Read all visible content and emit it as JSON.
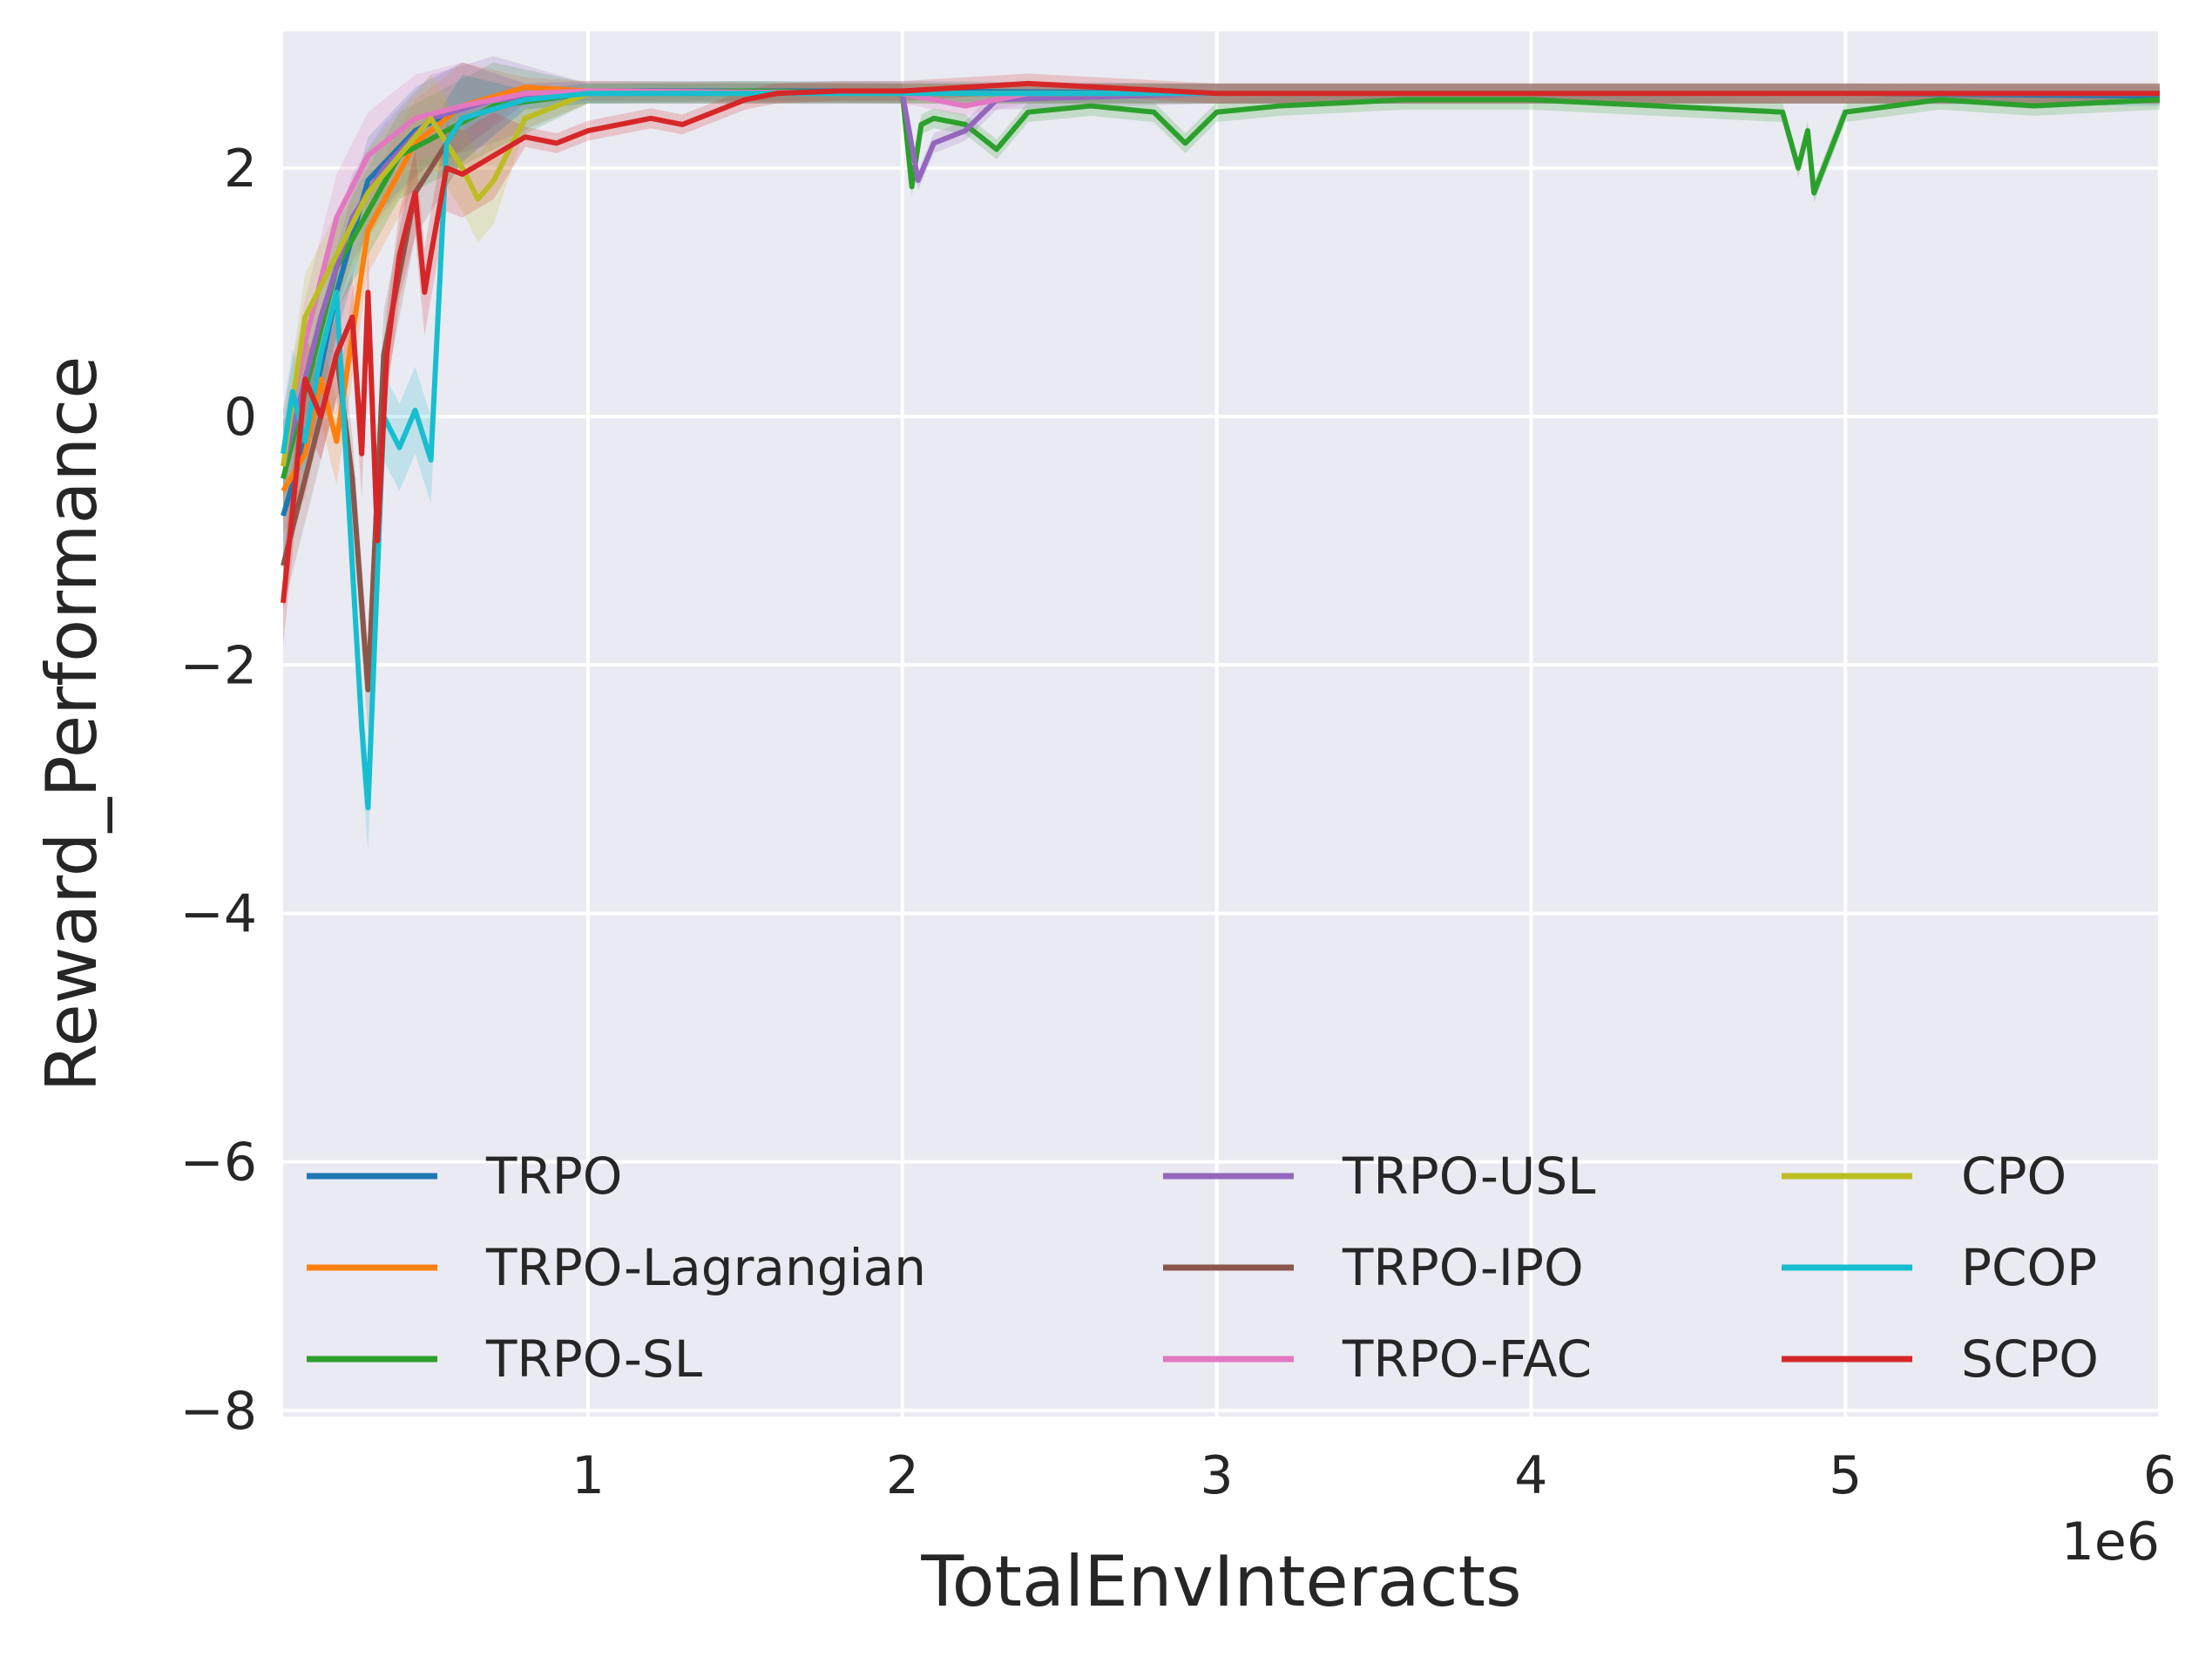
{
  "chart_data": {
    "type": "line",
    "xlabel": "TotalEnvInteracts",
    "ylabel": "Reward_Performance",
    "x_offset_label": "1e6",
    "xlim": [
      0.03,
      6.0
    ],
    "ylim": [
      -8.05,
      3.1
    ],
    "x_ticks": [
      1,
      2,
      3,
      4,
      5,
      6
    ],
    "x_tick_labels": [
      "1",
      "2",
      "3",
      "4",
      "5",
      "6"
    ],
    "y_ticks": [
      2,
      0,
      -2,
      -4,
      -6,
      -8
    ],
    "y_tick_labels": [
      "2",
      "0",
      "−2",
      "−4",
      "−6",
      "−8"
    ],
    "grid": true,
    "background": "#eaeaf2",
    "legend_position": "lower center",
    "series": [
      {
        "name": "TRPO",
        "color": "#1f77b4",
        "x": [
          0.03,
          0.1,
          0.2,
          0.3,
          0.45,
          0.6,
          0.8,
          1.0,
          2.0,
          3.0,
          4.0,
          5.0,
          6.0
        ],
        "y": [
          -0.8,
          -0.2,
          1.0,
          1.9,
          2.3,
          2.5,
          2.6,
          2.62,
          2.62,
          2.6,
          2.6,
          2.6,
          2.58
        ]
      },
      {
        "name": "TRPO-Lagrangian",
        "color": "#ff7f0e",
        "x": [
          0.03,
          0.1,
          0.15,
          0.2,
          0.3,
          0.45,
          0.6,
          0.8,
          1.0,
          2.0,
          3.0,
          4.0,
          5.0,
          6.0
        ],
        "y": [
          -0.6,
          -0.3,
          0.3,
          -0.2,
          1.5,
          2.2,
          2.5,
          2.65,
          2.62,
          2.6,
          2.6,
          2.6,
          2.6,
          2.6
        ]
      },
      {
        "name": "TRPO-SL",
        "color": "#2ca02c",
        "x": [
          0.03,
          0.2,
          0.4,
          0.7,
          1.0,
          1.5,
          2.0,
          2.03,
          2.06,
          2.1,
          2.2,
          2.3,
          2.4,
          2.6,
          2.8,
          2.9,
          3.0,
          3.2,
          3.6,
          4.0,
          4.4,
          4.8,
          4.85,
          4.88,
          4.9,
          5.0,
          5.3,
          5.6,
          6.0
        ],
        "y": [
          -0.5,
          1.2,
          2.1,
          2.5,
          2.6,
          2.62,
          2.6,
          1.85,
          2.35,
          2.4,
          2.35,
          2.15,
          2.45,
          2.5,
          2.45,
          2.2,
          2.45,
          2.5,
          2.55,
          2.55,
          2.5,
          2.45,
          2.0,
          2.3,
          1.8,
          2.45,
          2.55,
          2.5,
          2.55
        ]
      },
      {
        "name": "TRPO-USL",
        "color": "#9467bd",
        "x": [
          0.03,
          0.15,
          0.25,
          0.35,
          0.5,
          0.7,
          1.0,
          2.0,
          2.05,
          2.1,
          2.2,
          2.3,
          3.0,
          4.0,
          5.0,
          6.0
        ],
        "y": [
          -0.4,
          0.8,
          1.6,
          2.0,
          2.4,
          2.55,
          2.6,
          2.6,
          1.9,
          2.2,
          2.3,
          2.55,
          2.6,
          2.6,
          2.6,
          2.6
        ]
      },
      {
        "name": "TRPO-IPO",
        "color": "#8c564b",
        "x": [
          0.03,
          0.1,
          0.2,
          0.25,
          0.3,
          0.35,
          0.45,
          0.6,
          0.8,
          1.0,
          2.0,
          3.0,
          4.0,
          5.0,
          6.0
        ],
        "y": [
          -1.2,
          -0.5,
          0.5,
          -0.5,
          -2.2,
          0.5,
          1.8,
          2.4,
          2.55,
          2.6,
          2.6,
          2.6,
          2.6,
          2.6,
          2.6
        ]
      },
      {
        "name": "TRPO-FAC",
        "color": "#e377c2",
        "x": [
          0.03,
          0.1,
          0.2,
          0.3,
          0.45,
          0.6,
          0.8,
          1.0,
          2.0,
          2.2,
          2.4,
          3.0,
          4.0,
          5.0,
          6.0
        ],
        "y": [
          -0.3,
          0.6,
          1.6,
          2.1,
          2.4,
          2.5,
          2.6,
          2.62,
          2.6,
          2.5,
          2.6,
          2.6,
          2.6,
          2.6,
          2.6
        ]
      },
      {
        "name": "CPO",
        "color": "#bcbd22",
        "x": [
          0.03,
          0.1,
          0.2,
          0.3,
          0.4,
          0.5,
          0.6,
          0.65,
          0.7,
          0.8,
          1.0,
          1.5,
          2.0,
          3.0,
          4.0,
          5.0,
          6.0
        ],
        "y": [
          -0.4,
          0.8,
          1.3,
          1.8,
          2.1,
          2.4,
          2.0,
          1.75,
          1.9,
          2.4,
          2.6,
          2.6,
          2.6,
          2.6,
          2.6,
          2.6,
          2.6
        ]
      },
      {
        "name": "PCOP",
        "color": "#17becf",
        "x": [
          0.03,
          0.06,
          0.1,
          0.15,
          0.2,
          0.25,
          0.28,
          0.3,
          0.35,
          0.4,
          0.45,
          0.5,
          0.55,
          0.6,
          0.8,
          1.0,
          1.5,
          2.0,
          3.0,
          4.0,
          5.0,
          6.0
        ],
        "y": [
          -0.3,
          0.2,
          -0.2,
          0.5,
          1.0,
          -1.2,
          -2.5,
          -3.15,
          0.0,
          -0.25,
          0.05,
          -0.35,
          2.2,
          2.4,
          2.55,
          2.6,
          2.6,
          2.6,
          2.6,
          2.6,
          2.6,
          2.6
        ]
      },
      {
        "name": "SCPO",
        "color": "#d62728",
        "x": [
          0.03,
          0.07,
          0.1,
          0.15,
          0.2,
          0.25,
          0.28,
          0.3,
          0.33,
          0.36,
          0.4,
          0.45,
          0.48,
          0.5,
          0.55,
          0.6,
          0.7,
          0.8,
          0.9,
          1.0,
          1.1,
          1.2,
          1.3,
          1.4,
          1.5,
          1.6,
          1.8,
          2.0,
          2.4,
          3.0,
          4.0,
          5.0,
          6.0
        ],
        "y": [
          -1.5,
          -0.5,
          0.3,
          0.0,
          0.5,
          0.8,
          -0.3,
          1.0,
          -1.0,
          0.5,
          1.3,
          1.8,
          1.0,
          1.3,
          2.0,
          1.95,
          2.1,
          2.25,
          2.2,
          2.3,
          2.35,
          2.4,
          2.35,
          2.45,
          2.55,
          2.6,
          2.62,
          2.62,
          2.68,
          2.6,
          2.6,
          2.6,
          2.6
        ]
      }
    ],
    "legend_columns": [
      [
        "TRPO",
        "TRPO-Lagrangian",
        "TRPO-SL"
      ],
      [
        "TRPO-USL",
        "TRPO-IPO",
        "TRPO-FAC"
      ],
      [
        "CPO",
        "PCOP",
        "SCPO"
      ]
    ]
  }
}
